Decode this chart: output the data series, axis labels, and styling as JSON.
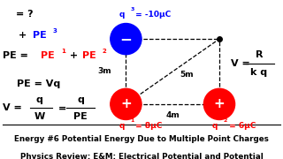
{
  "title_line1": "Physics Review: E&M: Electrical Potential and Potential",
  "title_line2": "Energy #6 Potential Energy Due to Multiple Point Charges",
  "bg_color": "#ffffff",
  "title_color": "#000000",
  "red_color": "#ff0000",
  "blue_color": "#0000ff",
  "black_color": "#000000",
  "q1_val": "= 8μC",
  "q2_val": "= 6μC",
  "q3_val": "= -10μC",
  "dist_top": "4m",
  "dist_left": "3m",
  "dist_diag": "5m"
}
